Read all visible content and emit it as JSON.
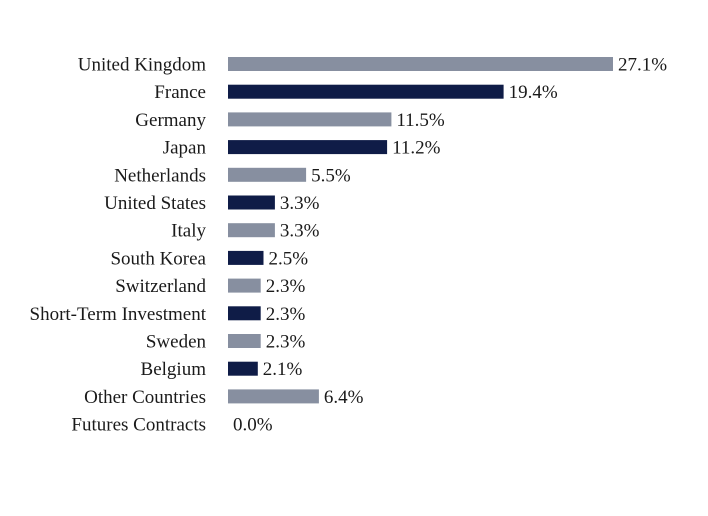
{
  "chart_data": {
    "type": "bar",
    "orientation": "horizontal",
    "categories": [
      "United Kingdom",
      "France",
      "Germany",
      "Japan",
      "Netherlands",
      "United States",
      "Italy",
      "South Korea",
      "Switzerland",
      "Short-Term Investment",
      "Sweden",
      "Belgium",
      "Other Countries",
      "Futures Contracts"
    ],
    "values": [
      27.1,
      19.4,
      11.5,
      11.2,
      5.5,
      3.3,
      3.3,
      2.5,
      2.3,
      2.3,
      2.3,
      2.1,
      6.4,
      0.0
    ],
    "value_labels": [
      "27.1%",
      "19.4%",
      "11.5%",
      "11.2%",
      "5.5%",
      "3.3%",
      "3.3%",
      "2.5%",
      "2.3%",
      "2.3%",
      "2.3%",
      "2.1%",
      "6.4%",
      "0.0%"
    ],
    "colors": [
      "#878fa0",
      "#0f1c47"
    ],
    "title": "",
    "xlabel": "",
    "ylabel": "",
    "xlim": [
      0,
      27.1
    ],
    "grid": false,
    "legend": "none"
  }
}
